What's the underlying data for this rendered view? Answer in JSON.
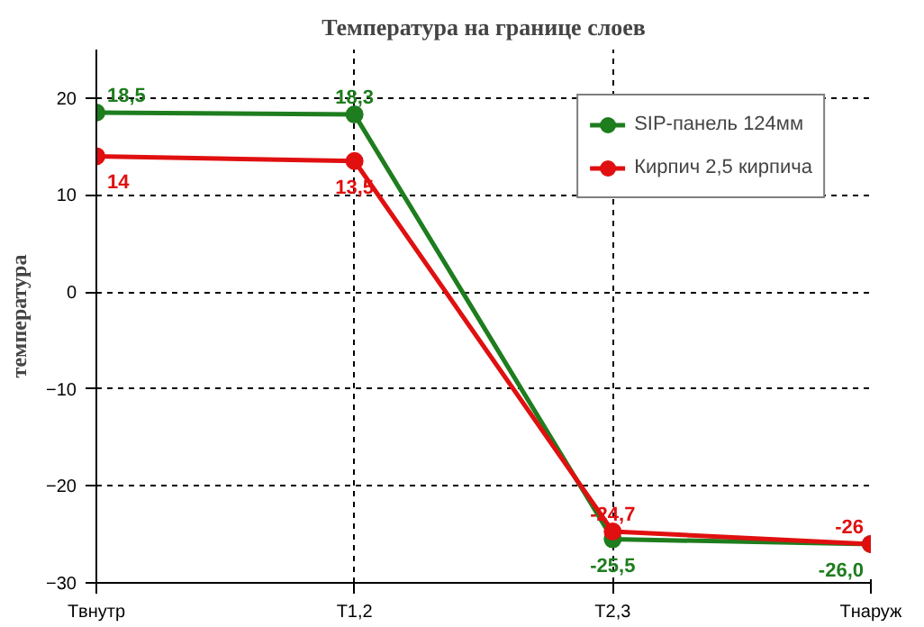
{
  "chart_data": {
    "type": "line",
    "title": "Температура на границе слоев",
    "ylabel": "температура",
    "categories": [
      "Tвнутр",
      "T1,2",
      "T2,3",
      "Tнаруж"
    ],
    "series": [
      {
        "name": "SIP-панель 124мм",
        "color": "#1e7d1e",
        "values": [
          18.5,
          18.3,
          -25.5,
          -26.0
        ],
        "value_labels": [
          "18,5",
          "18,3",
          "-25,5",
          "-26,0"
        ]
      },
      {
        "name": "Кирпич 2,5 кирпича",
        "color": "#e01010",
        "values": [
          14,
          13.5,
          -24.7,
          -26
        ],
        "value_labels": [
          "14",
          "13,5",
          "-24,7",
          "-26"
        ]
      }
    ],
    "ylim": [
      -30,
      25
    ],
    "yticks": [
      -30,
      -20,
      -10,
      0,
      10,
      20
    ],
    "grid": true,
    "legend": "top right",
    "marker": "circle",
    "line_style": "solid"
  }
}
